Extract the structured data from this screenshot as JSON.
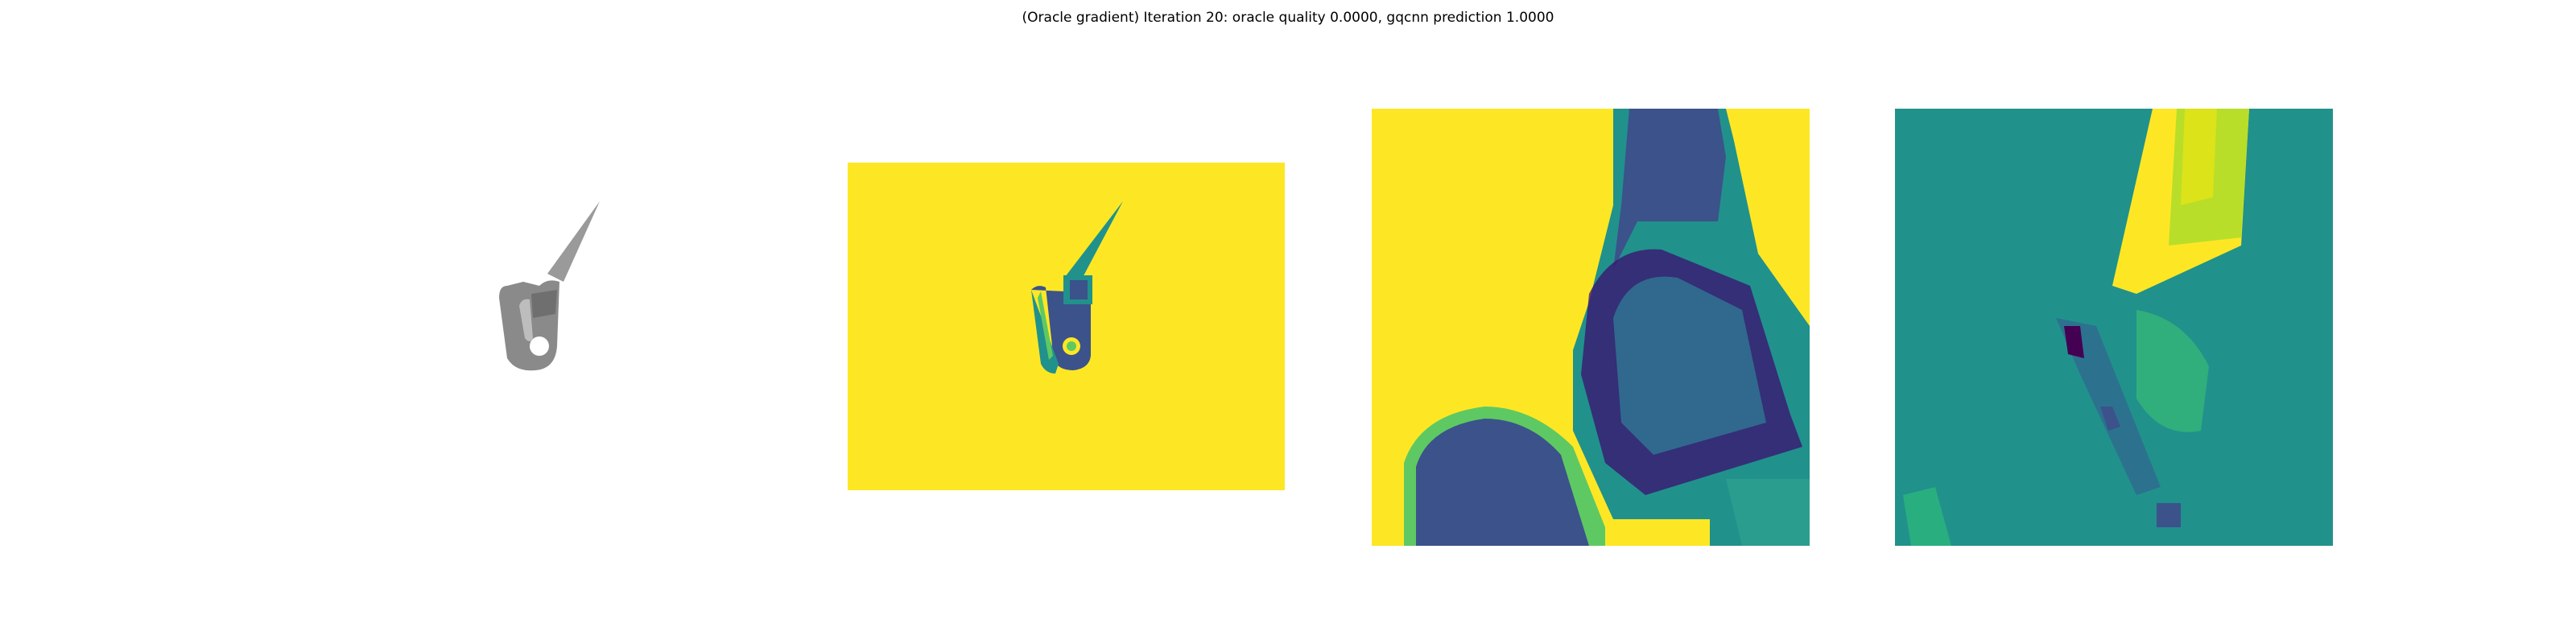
{
  "figure": {
    "title": "(Oracle gradient) Iteration 20: oracle quality 0.0000, gqcnn prediction 1.0000"
  },
  "panels": [
    {
      "name": "rendered-object",
      "kind": "grayscale-render"
    },
    {
      "name": "depth-image",
      "kind": "viridis-depth"
    },
    {
      "name": "depth-crop",
      "kind": "viridis-depth-crop"
    },
    {
      "name": "gradient-map",
      "kind": "viridis-gradient"
    }
  ],
  "colors": {
    "viridis_yellow": "#fde725",
    "viridis_green": "#5ec962",
    "viridis_teal": "#21918c",
    "viridis_blue": "#3b528b",
    "viridis_purple": "#440154",
    "object_gray": "#8a8a8a"
  }
}
